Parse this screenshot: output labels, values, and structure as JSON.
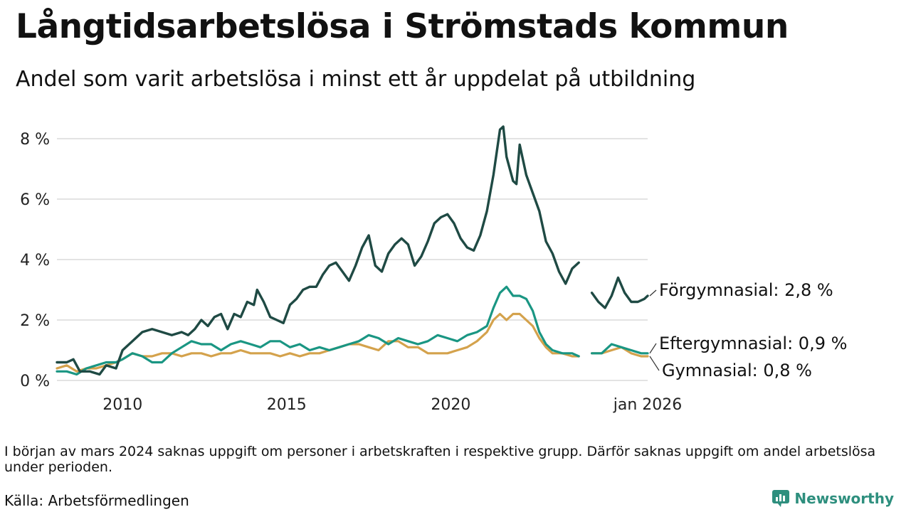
{
  "title": "Långtidsarbetslösa i Strömstads kommun",
  "subtitle": "Andel som varit arbetslösa i minst ett år uppdelat på utbildning",
  "note": "I början av mars 2024 saknas uppgift om personer i arbetskraften i respektive grupp. Därför saknas uppgift om andel arbetslösa under perioden.",
  "source": "Källa: Arbetsförmedlingen",
  "brand": "Newsworthy",
  "colors": {
    "forgymnasial": "#1f4a44",
    "eftergymnasial": "#1a9683",
    "gymnasial": "#d4a24c",
    "grid": "#e3e3e3",
    "brand": "#2e8f7e"
  },
  "chart_data": {
    "type": "line",
    "title": "Långtidsarbetslösa i Strömstads kommun",
    "xlabel": "",
    "ylabel": "",
    "xlim": [
      2008.0,
      2026.0
    ],
    "ylim": [
      0,
      8
    ],
    "yticks": [
      0,
      2,
      4,
      6,
      8
    ],
    "ytick_labels": [
      "0 %",
      "2 %",
      "4 %",
      "6 %",
      "8 %"
    ],
    "xticks": [
      2010,
      2015,
      2020,
      2026
    ],
    "xtick_labels": [
      "2010",
      "2015",
      "2020",
      "jan 2026"
    ],
    "gap": [
      2024.0,
      2024.3
    ],
    "series": [
      {
        "name": "Förgymnasial",
        "end_label": "Förgymnasial: 2,8 %",
        "color_key": "forgymnasial",
        "points": [
          [
            2008.0,
            0.6
          ],
          [
            2008.3,
            0.6
          ],
          [
            2008.5,
            0.7
          ],
          [
            2008.7,
            0.3
          ],
          [
            2009.0,
            0.3
          ],
          [
            2009.3,
            0.2
          ],
          [
            2009.5,
            0.5
          ],
          [
            2009.8,
            0.4
          ],
          [
            2010.0,
            1.0
          ],
          [
            2010.3,
            1.3
          ],
          [
            2010.6,
            1.6
          ],
          [
            2010.9,
            1.7
          ],
          [
            2011.2,
            1.6
          ],
          [
            2011.5,
            1.5
          ],
          [
            2011.8,
            1.6
          ],
          [
            2012.0,
            1.5
          ],
          [
            2012.2,
            1.7
          ],
          [
            2012.4,
            2.0
          ],
          [
            2012.6,
            1.8
          ],
          [
            2012.8,
            2.1
          ],
          [
            2013.0,
            2.2
          ],
          [
            2013.2,
            1.7
          ],
          [
            2013.4,
            2.2
          ],
          [
            2013.6,
            2.1
          ],
          [
            2013.8,
            2.6
          ],
          [
            2014.0,
            2.5
          ],
          [
            2014.1,
            3.0
          ],
          [
            2014.3,
            2.6
          ],
          [
            2014.5,
            2.1
          ],
          [
            2014.7,
            2.0
          ],
          [
            2014.9,
            1.9
          ],
          [
            2015.1,
            2.5
          ],
          [
            2015.3,
            2.7
          ],
          [
            2015.5,
            3.0
          ],
          [
            2015.7,
            3.1
          ],
          [
            2015.9,
            3.1
          ],
          [
            2016.1,
            3.5
          ],
          [
            2016.3,
            3.8
          ],
          [
            2016.5,
            3.9
          ],
          [
            2016.7,
            3.6
          ],
          [
            2016.9,
            3.3
          ],
          [
            2017.1,
            3.8
          ],
          [
            2017.3,
            4.4
          ],
          [
            2017.5,
            4.8
          ],
          [
            2017.7,
            3.8
          ],
          [
            2017.9,
            3.6
          ],
          [
            2018.1,
            4.2
          ],
          [
            2018.3,
            4.5
          ],
          [
            2018.5,
            4.7
          ],
          [
            2018.7,
            4.5
          ],
          [
            2018.9,
            3.8
          ],
          [
            2019.1,
            4.1
          ],
          [
            2019.3,
            4.6
          ],
          [
            2019.5,
            5.2
          ],
          [
            2019.7,
            5.4
          ],
          [
            2019.9,
            5.5
          ],
          [
            2020.1,
            5.2
          ],
          [
            2020.3,
            4.7
          ],
          [
            2020.5,
            4.4
          ],
          [
            2020.7,
            4.3
          ],
          [
            2020.9,
            4.8
          ],
          [
            2021.1,
            5.6
          ],
          [
            2021.3,
            6.8
          ],
          [
            2021.5,
            8.3
          ],
          [
            2021.6,
            8.4
          ],
          [
            2021.7,
            7.4
          ],
          [
            2021.9,
            6.6
          ],
          [
            2022.0,
            6.5
          ],
          [
            2022.1,
            7.8
          ],
          [
            2022.3,
            6.8
          ],
          [
            2022.5,
            6.2
          ],
          [
            2022.7,
            5.6
          ],
          [
            2022.9,
            4.6
          ],
          [
            2023.1,
            4.2
          ],
          [
            2023.3,
            3.6
          ],
          [
            2023.5,
            3.2
          ],
          [
            2023.7,
            3.7
          ],
          [
            2023.9,
            3.9
          ],
          [
            2024.3,
            2.9
          ],
          [
            2024.5,
            2.6
          ],
          [
            2024.7,
            2.4
          ],
          [
            2024.9,
            2.8
          ],
          [
            2025.1,
            3.4
          ],
          [
            2025.3,
            2.9
          ],
          [
            2025.5,
            2.6
          ],
          [
            2025.7,
            2.6
          ],
          [
            2025.9,
            2.7
          ],
          [
            2026.0,
            2.8
          ]
        ]
      },
      {
        "name": "Eftergymnasial",
        "end_label": "Eftergymnasial: 0,9 %",
        "color_key": "eftergymnasial",
        "points": [
          [
            2008.0,
            0.3
          ],
          [
            2008.3,
            0.3
          ],
          [
            2008.6,
            0.2
          ],
          [
            2008.9,
            0.4
          ],
          [
            2009.2,
            0.5
          ],
          [
            2009.5,
            0.6
          ],
          [
            2009.8,
            0.6
          ],
          [
            2010.0,
            0.7
          ],
          [
            2010.3,
            0.9
          ],
          [
            2010.6,
            0.8
          ],
          [
            2010.9,
            0.6
          ],
          [
            2011.2,
            0.6
          ],
          [
            2011.5,
            0.9
          ],
          [
            2011.8,
            1.1
          ],
          [
            2012.1,
            1.3
          ],
          [
            2012.4,
            1.2
          ],
          [
            2012.7,
            1.2
          ],
          [
            2013.0,
            1.0
          ],
          [
            2013.3,
            1.2
          ],
          [
            2013.6,
            1.3
          ],
          [
            2013.9,
            1.2
          ],
          [
            2014.2,
            1.1
          ],
          [
            2014.5,
            1.3
          ],
          [
            2014.8,
            1.3
          ],
          [
            2015.1,
            1.1
          ],
          [
            2015.4,
            1.2
          ],
          [
            2015.7,
            1.0
          ],
          [
            2016.0,
            1.1
          ],
          [
            2016.3,
            1.0
          ],
          [
            2016.6,
            1.1
          ],
          [
            2016.9,
            1.2
          ],
          [
            2017.2,
            1.3
          ],
          [
            2017.5,
            1.5
          ],
          [
            2017.8,
            1.4
          ],
          [
            2018.1,
            1.2
          ],
          [
            2018.4,
            1.4
          ],
          [
            2018.7,
            1.3
          ],
          [
            2019.0,
            1.2
          ],
          [
            2019.3,
            1.3
          ],
          [
            2019.6,
            1.5
          ],
          [
            2019.9,
            1.4
          ],
          [
            2020.2,
            1.3
          ],
          [
            2020.5,
            1.5
          ],
          [
            2020.8,
            1.6
          ],
          [
            2021.1,
            1.8
          ],
          [
            2021.3,
            2.4
          ],
          [
            2021.5,
            2.9
          ],
          [
            2021.7,
            3.1
          ],
          [
            2021.9,
            2.8
          ],
          [
            2022.1,
            2.8
          ],
          [
            2022.3,
            2.7
          ],
          [
            2022.5,
            2.3
          ],
          [
            2022.7,
            1.6
          ],
          [
            2022.9,
            1.2
          ],
          [
            2023.1,
            1.0
          ],
          [
            2023.4,
            0.9
          ],
          [
            2023.7,
            0.9
          ],
          [
            2023.9,
            0.8
          ],
          [
            2024.3,
            0.9
          ],
          [
            2024.6,
            0.9
          ],
          [
            2024.9,
            1.2
          ],
          [
            2025.2,
            1.1
          ],
          [
            2025.5,
            1.0
          ],
          [
            2025.8,
            0.9
          ],
          [
            2026.0,
            0.9
          ]
        ]
      },
      {
        "name": "Gymnasial",
        "end_label": "Gymnasial: 0,8 %",
        "color_key": "gymnasial",
        "points": [
          [
            2008.0,
            0.4
          ],
          [
            2008.3,
            0.5
          ],
          [
            2008.6,
            0.3
          ],
          [
            2008.9,
            0.4
          ],
          [
            2009.2,
            0.4
          ],
          [
            2009.5,
            0.5
          ],
          [
            2009.8,
            0.6
          ],
          [
            2010.0,
            0.7
          ],
          [
            2010.3,
            0.9
          ],
          [
            2010.6,
            0.8
          ],
          [
            2010.9,
            0.8
          ],
          [
            2011.2,
            0.9
          ],
          [
            2011.5,
            0.9
          ],
          [
            2011.8,
            0.8
          ],
          [
            2012.1,
            0.9
          ],
          [
            2012.4,
            0.9
          ],
          [
            2012.7,
            0.8
          ],
          [
            2013.0,
            0.9
          ],
          [
            2013.3,
            0.9
          ],
          [
            2013.6,
            1.0
          ],
          [
            2013.9,
            0.9
          ],
          [
            2014.2,
            0.9
          ],
          [
            2014.5,
            0.9
          ],
          [
            2014.8,
            0.8
          ],
          [
            2015.1,
            0.9
          ],
          [
            2015.4,
            0.8
          ],
          [
            2015.7,
            0.9
          ],
          [
            2016.0,
            0.9
          ],
          [
            2016.3,
            1.0
          ],
          [
            2016.6,
            1.1
          ],
          [
            2016.9,
            1.2
          ],
          [
            2017.2,
            1.2
          ],
          [
            2017.5,
            1.1
          ],
          [
            2017.8,
            1.0
          ],
          [
            2018.1,
            1.3
          ],
          [
            2018.4,
            1.3
          ],
          [
            2018.7,
            1.1
          ],
          [
            2019.0,
            1.1
          ],
          [
            2019.3,
            0.9
          ],
          [
            2019.6,
            0.9
          ],
          [
            2019.9,
            0.9
          ],
          [
            2020.2,
            1.0
          ],
          [
            2020.5,
            1.1
          ],
          [
            2020.8,
            1.3
          ],
          [
            2021.1,
            1.6
          ],
          [
            2021.3,
            2.0
          ],
          [
            2021.5,
            2.2
          ],
          [
            2021.7,
            2.0
          ],
          [
            2021.9,
            2.2
          ],
          [
            2022.1,
            2.2
          ],
          [
            2022.3,
            2.0
          ],
          [
            2022.5,
            1.8
          ],
          [
            2022.7,
            1.4
          ],
          [
            2022.9,
            1.1
          ],
          [
            2023.1,
            0.9
          ],
          [
            2023.4,
            0.9
          ],
          [
            2023.7,
            0.8
          ],
          [
            2023.9,
            0.8
          ],
          [
            2024.3,
            0.9
          ],
          [
            2024.6,
            0.9
          ],
          [
            2024.9,
            1.0
          ],
          [
            2025.2,
            1.1
          ],
          [
            2025.5,
            0.9
          ],
          [
            2025.8,
            0.8
          ],
          [
            2026.0,
            0.8
          ]
        ]
      }
    ]
  }
}
